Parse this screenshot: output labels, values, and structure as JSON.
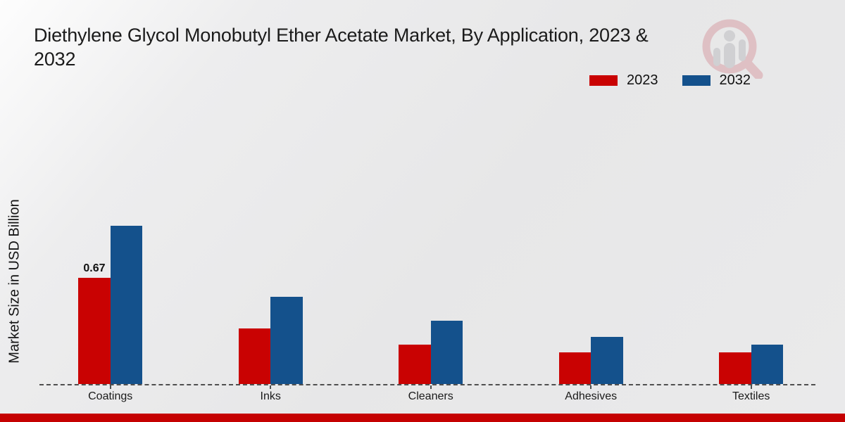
{
  "title": {
    "line1": "Diethylene Glycol Monobutyl Ether Acetate Market, By Application, 2023 &",
    "line2": "2032"
  },
  "watermark": {
    "icon": "magnifier-people-research-logo"
  },
  "footer": {
    "accent_color": "#c50101"
  },
  "chart_data": {
    "type": "bar",
    "title": "Diethylene Glycol Monobutyl Ether Acetate Market, By Application, 2023 & 2032",
    "categories": [
      "Coatings",
      "Inks",
      "Cleaners",
      "Adhesives",
      "Textiles"
    ],
    "series": [
      {
        "name": "2023",
        "color": "#c90202",
        "values": [
          0.67,
          0.35,
          0.25,
          0.2,
          0.2
        ]
      },
      {
        "name": "2032",
        "color": "#14518c",
        "values": [
          1.0,
          0.55,
          0.4,
          0.3,
          0.25
        ]
      }
    ],
    "bar_labels": [
      {
        "category": "Coatings",
        "series": "2023",
        "text": "0.67"
      }
    ],
    "xlabel": "",
    "ylabel": "Market Size in USD Billion",
    "ylim": [
      0,
      1.76
    ],
    "grid": false,
    "legend_position": "top-right",
    "baseline_style": "dashed"
  }
}
